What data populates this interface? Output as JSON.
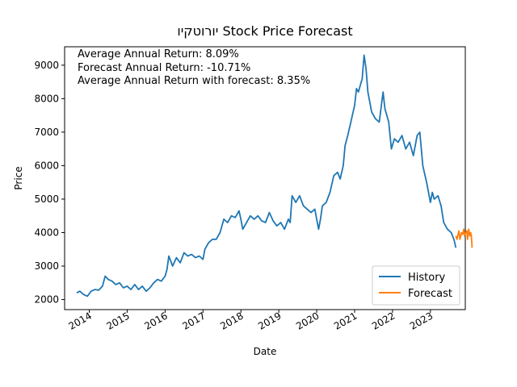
{
  "chart_data": {
    "type": "line",
    "title": "יורוטקיו Stock Price Forecast",
    "xlabel": "Date",
    "ylabel": "Price",
    "xlim": [
      2013.35,
      2023.92
    ],
    "ylim": [
      1700,
      9550
    ],
    "x_ticks": [
      2014,
      2015,
      2016,
      2017,
      2018,
      2019,
      2020,
      2021,
      2022,
      2023
    ],
    "x_tick_labels": [
      "2014",
      "2015",
      "2016",
      "2017",
      "2018",
      "2019",
      "2020",
      "2021",
      "2022",
      "2023"
    ],
    "y_ticks": [
      2000,
      3000,
      4000,
      5000,
      6000,
      7000,
      8000,
      9000
    ],
    "y_tick_labels": [
      "2000",
      "3000",
      "4000",
      "5000",
      "6000",
      "7000",
      "8000",
      "9000"
    ],
    "grid": false,
    "legend_position": "bottom-right",
    "annotations": [
      "Average Annual Return: 8.09%",
      "Forecast Annual Return: -10.71%",
      "Average Annual Return with forecast: 8.35%"
    ],
    "series": [
      {
        "name": "History",
        "color": "#1f77b4",
        "points": [
          [
            2013.67,
            2200
          ],
          [
            2013.75,
            2250
          ],
          [
            2013.85,
            2150
          ],
          [
            2013.95,
            2100
          ],
          [
            2014.05,
            2250
          ],
          [
            2014.15,
            2300
          ],
          [
            2014.25,
            2280
          ],
          [
            2014.35,
            2400
          ],
          [
            2014.42,
            2700
          ],
          [
            2014.5,
            2600
          ],
          [
            2014.6,
            2550
          ],
          [
            2014.7,
            2450
          ],
          [
            2014.8,
            2500
          ],
          [
            2014.9,
            2350
          ],
          [
            2015.0,
            2400
          ],
          [
            2015.1,
            2300
          ],
          [
            2015.2,
            2450
          ],
          [
            2015.3,
            2300
          ],
          [
            2015.4,
            2400
          ],
          [
            2015.5,
            2250
          ],
          [
            2015.6,
            2350
          ],
          [
            2015.7,
            2500
          ],
          [
            2015.8,
            2600
          ],
          [
            2015.9,
            2550
          ],
          [
            2016.0,
            2700
          ],
          [
            2016.05,
            2900
          ],
          [
            2016.1,
            3300
          ],
          [
            2016.2,
            3000
          ],
          [
            2016.3,
            3250
          ],
          [
            2016.4,
            3100
          ],
          [
            2016.5,
            3400
          ],
          [
            2016.6,
            3300
          ],
          [
            2016.7,
            3350
          ],
          [
            2016.8,
            3250
          ],
          [
            2016.9,
            3300
          ],
          [
            2017.0,
            3200
          ],
          [
            2017.05,
            3500
          ],
          [
            2017.15,
            3700
          ],
          [
            2017.25,
            3800
          ],
          [
            2017.35,
            3800
          ],
          [
            2017.45,
            4000
          ],
          [
            2017.55,
            4400
          ],
          [
            2017.65,
            4300
          ],
          [
            2017.75,
            4500
          ],
          [
            2017.85,
            4450
          ],
          [
            2017.95,
            4650
          ],
          [
            2018.0,
            4400
          ],
          [
            2018.05,
            4100
          ],
          [
            2018.15,
            4300
          ],
          [
            2018.25,
            4500
          ],
          [
            2018.35,
            4400
          ],
          [
            2018.45,
            4500
          ],
          [
            2018.55,
            4350
          ],
          [
            2018.65,
            4300
          ],
          [
            2018.75,
            4600
          ],
          [
            2018.85,
            4350
          ],
          [
            2018.95,
            4200
          ],
          [
            2019.05,
            4300
          ],
          [
            2019.15,
            4100
          ],
          [
            2019.25,
            4400
          ],
          [
            2019.3,
            4300
          ],
          [
            2019.35,
            5100
          ],
          [
            2019.45,
            4900
          ],
          [
            2019.55,
            5100
          ],
          [
            2019.65,
            4800
          ],
          [
            2019.75,
            4700
          ],
          [
            2019.85,
            4600
          ],
          [
            2019.95,
            4700
          ],
          [
            2020.05,
            4100
          ],
          [
            2020.1,
            4400
          ],
          [
            2020.15,
            4800
          ],
          [
            2020.25,
            4900
          ],
          [
            2020.35,
            5200
          ],
          [
            2020.45,
            5700
          ],
          [
            2020.55,
            5800
          ],
          [
            2020.62,
            5600
          ],
          [
            2020.7,
            6000
          ],
          [
            2020.75,
            6600
          ],
          [
            2020.82,
            6900
          ],
          [
            2020.9,
            7300
          ],
          [
            2021.0,
            7800
          ],
          [
            2021.05,
            8300
          ],
          [
            2021.1,
            8200
          ],
          [
            2021.15,
            8400
          ],
          [
            2021.2,
            8600
          ],
          [
            2021.25,
            9300
          ],
          [
            2021.3,
            8900
          ],
          [
            2021.35,
            8200
          ],
          [
            2021.45,
            7600
          ],
          [
            2021.55,
            7400
          ],
          [
            2021.65,
            7300
          ],
          [
            2021.75,
            8200
          ],
          [
            2021.8,
            7700
          ],
          [
            2021.9,
            7300
          ],
          [
            2021.97,
            6500
          ],
          [
            2022.05,
            6800
          ],
          [
            2022.15,
            6700
          ],
          [
            2022.25,
            6900
          ],
          [
            2022.35,
            6500
          ],
          [
            2022.45,
            6700
          ],
          [
            2022.55,
            6300
          ],
          [
            2022.65,
            6900
          ],
          [
            2022.72,
            7000
          ],
          [
            2022.8,
            6000
          ],
          [
            2022.9,
            5500
          ],
          [
            2023.0,
            4900
          ],
          [
            2023.05,
            5200
          ],
          [
            2023.1,
            5000
          ],
          [
            2023.2,
            5100
          ],
          [
            2023.28,
            4800
          ],
          [
            2023.35,
            4300
          ],
          [
            2023.45,
            4100
          ],
          [
            2023.55,
            4000
          ],
          [
            2023.62,
            3800
          ],
          [
            2023.67,
            3550
          ]
        ]
      },
      {
        "name": "Forecast",
        "color": "#ff7f0e",
        "points": [
          [
            2023.67,
            3900
          ],
          [
            2023.7,
            3800
          ],
          [
            2023.75,
            4050
          ],
          [
            2023.78,
            3800
          ],
          [
            2023.82,
            4000
          ],
          [
            2023.85,
            3950
          ],
          [
            2023.88,
            4100
          ],
          [
            2023.9,
            3900
          ],
          [
            2023.93,
            4000
          ],
          [
            2023.96,
            4050
          ],
          [
            2023.98,
            3800
          ],
          [
            2024.01,
            4100
          ],
          [
            2024.04,
            3900
          ],
          [
            2024.06,
            4000
          ],
          [
            2024.08,
            3900
          ],
          [
            2024.1,
            3550
          ]
        ]
      }
    ]
  }
}
